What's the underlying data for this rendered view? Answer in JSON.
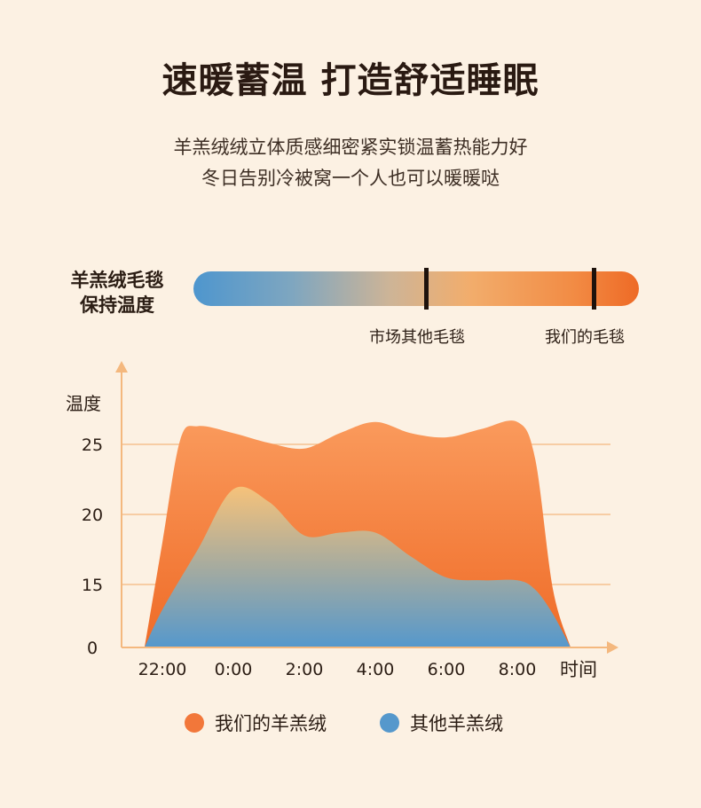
{
  "header": {
    "title": "速暖蓄温 打造舒适睡眠",
    "subtitle_line1": "羊羔绒绒立体质感细密紧实锁温蓄热能力好",
    "subtitle_line2": "冬日告别冷被窝一个人也可以暖暖哒"
  },
  "scale": {
    "label_line1": "羊羔绒毛毯",
    "label_line2": "保持温度",
    "markers": [
      {
        "label": "市场其他毛毯"
      },
      {
        "label": "我们的毛毯"
      }
    ]
  },
  "colors": {
    "background": "#fcf1e3",
    "ours": "#f2773a",
    "others": "#5598cc",
    "grid": "#f4b87e",
    "axis": "#f4b87e"
  },
  "chart_data": {
    "type": "area",
    "ylabel": "温度",
    "xlabel": "时间",
    "x_ticks": [
      "22:00",
      "0:00",
      "2:00",
      "4:00",
      "6:00",
      "8:00"
    ],
    "y_ticks": [
      0,
      15,
      20,
      25
    ],
    "grid": true,
    "legend_position": "bottom",
    "series": [
      {
        "name": "我们的羊羔绒",
        "color": "#f2773a",
        "points": [
          [
            "21:30",
            0
          ],
          [
            "22:00",
            18
          ],
          [
            "22:30",
            25.3
          ],
          [
            "23:00",
            26.3
          ],
          [
            "0:00",
            25.8
          ],
          [
            "1:00",
            25.1
          ],
          [
            "2:00",
            24.7
          ],
          [
            "3:00",
            25.8
          ],
          [
            "4:00",
            26.6
          ],
          [
            "5:00",
            25.8
          ],
          [
            "6:00",
            25.5
          ],
          [
            "7:00",
            26.1
          ],
          [
            "8:00",
            26.6
          ],
          [
            "8:30",
            24
          ],
          [
            "9:00",
            14
          ],
          [
            "9:30",
            0
          ]
        ]
      },
      {
        "name": "其他羊羔绒",
        "color": "#5598cc",
        "points": [
          [
            "21:30",
            0
          ],
          [
            "22:00",
            9
          ],
          [
            "23:00",
            17.5
          ],
          [
            "0:00",
            21.8
          ],
          [
            "1:00",
            20.9
          ],
          [
            "2:00",
            18.5
          ],
          [
            "3:00",
            18.7
          ],
          [
            "4:00",
            18.7
          ],
          [
            "5:00",
            17
          ],
          [
            "6:00",
            15.5
          ],
          [
            "7:00",
            15.3
          ],
          [
            "8:00",
            15.3
          ],
          [
            "8:30",
            13.8
          ],
          [
            "9:00",
            8
          ],
          [
            "9:30",
            0
          ]
        ]
      }
    ]
  }
}
